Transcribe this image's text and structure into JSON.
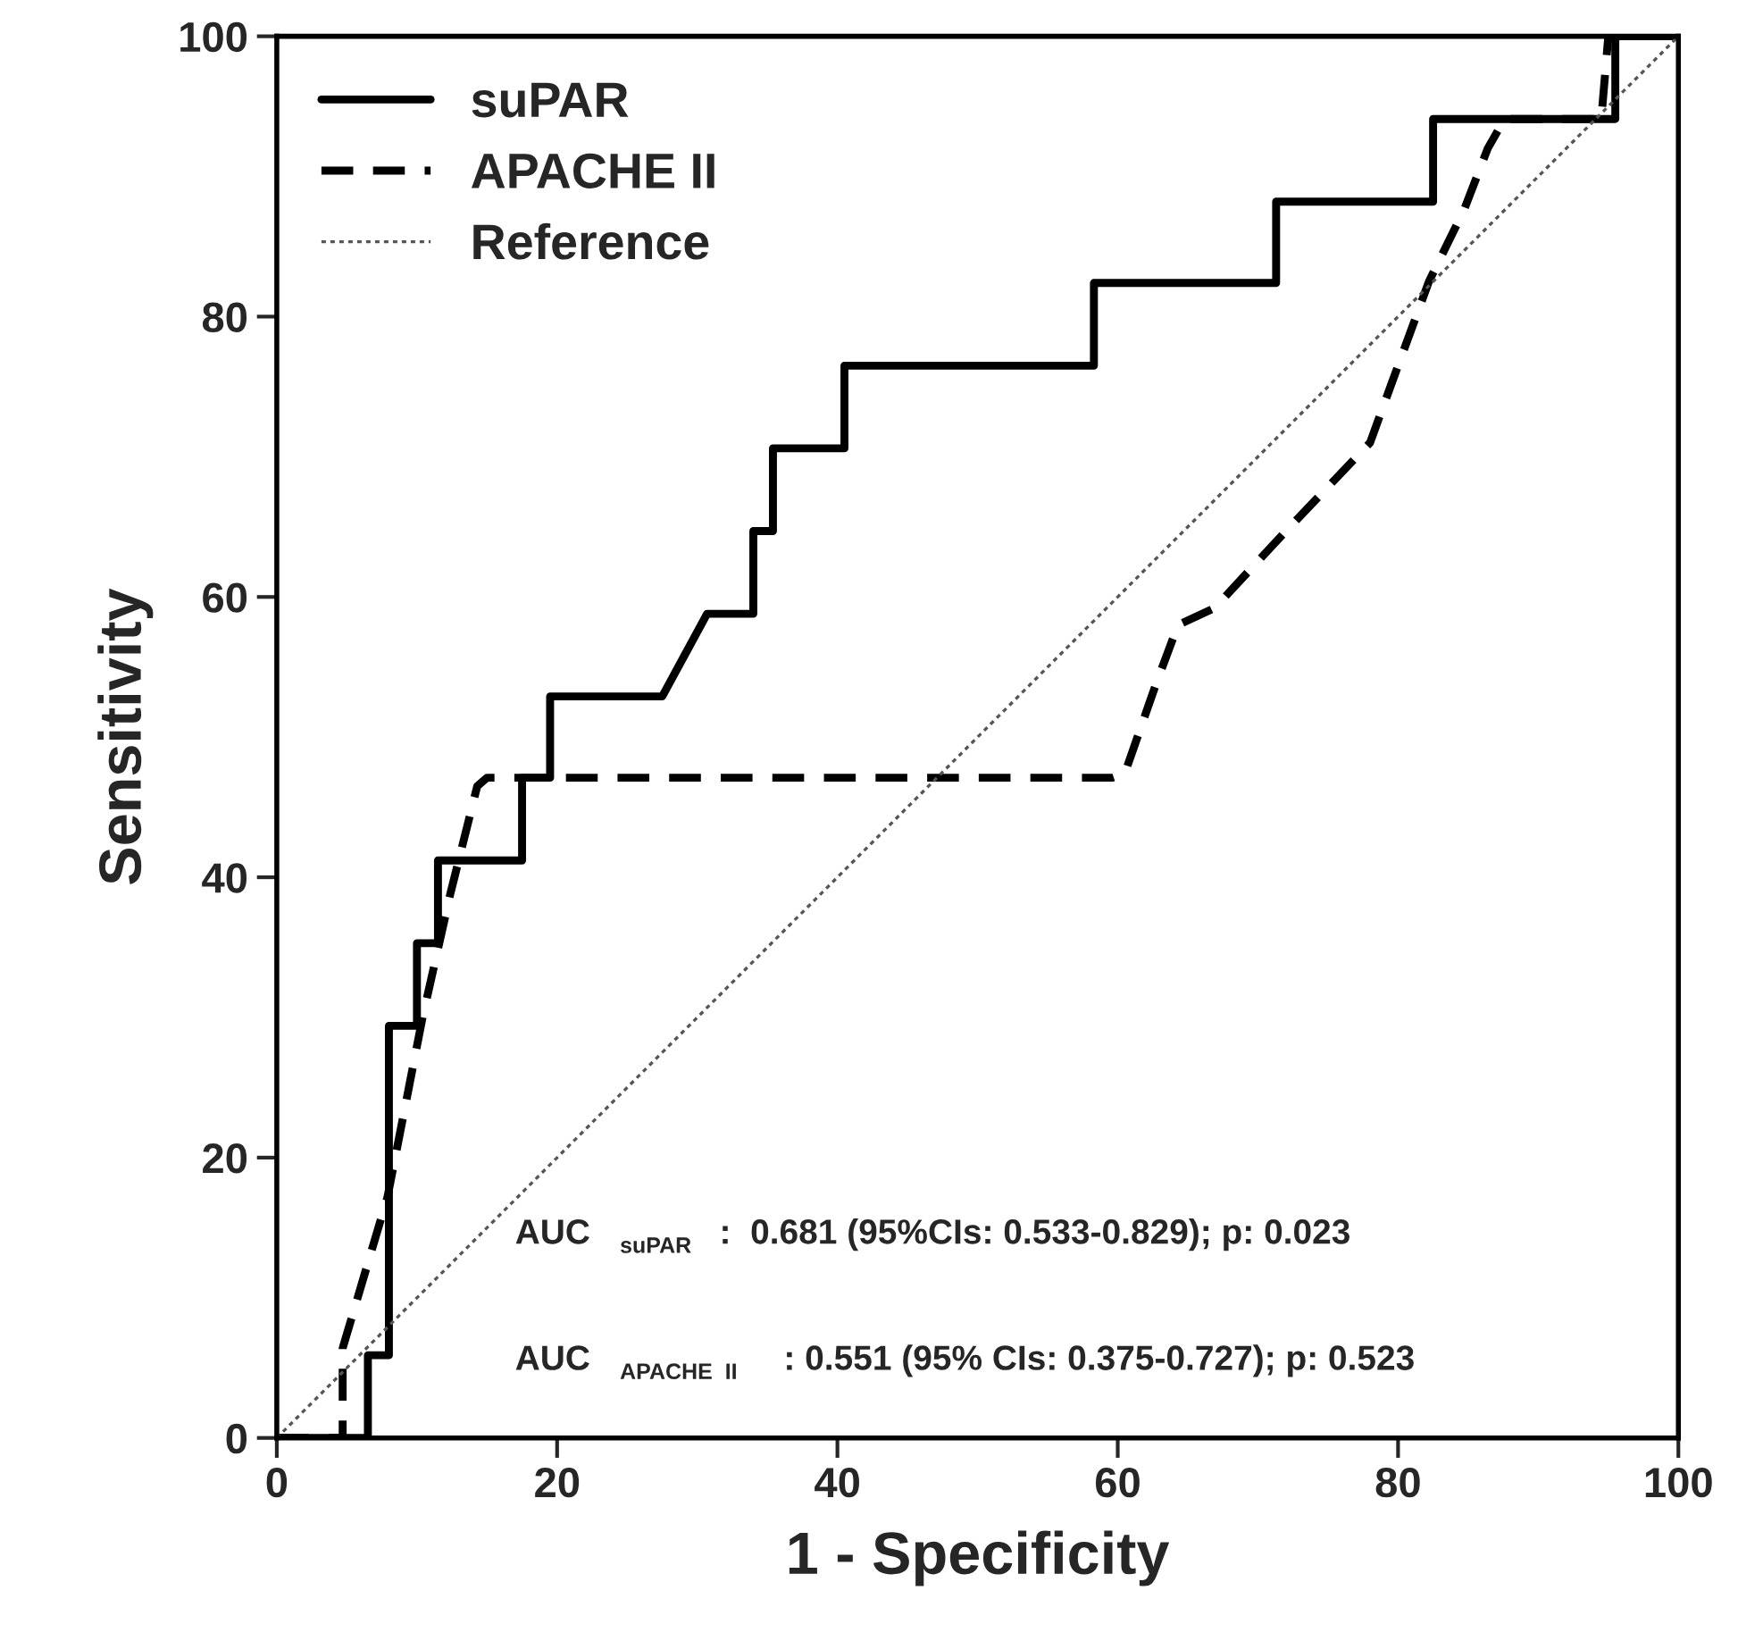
{
  "chart_data": {
    "type": "line",
    "xlabel": "1 - Specificity",
    "ylabel": "Sensitivity",
    "xlim": [
      0,
      100
    ],
    "ylim": [
      0,
      100
    ],
    "xticks": [
      0,
      20,
      40,
      60,
      80,
      100
    ],
    "yticks": [
      0,
      20,
      40,
      60,
      80,
      100
    ],
    "grid": false,
    "legend": "top left",
    "marker": "none",
    "series": [
      {
        "name": "suPAR",
        "color": "#000000",
        "line_style": "solid",
        "x": [
          0,
          6.5,
          6.5,
          8,
          8,
          10,
          10,
          11.5,
          11.5,
          17.5,
          17.5,
          19.5,
          19.5,
          27.5,
          30.7,
          34,
          34,
          35.4,
          35.4,
          40.5,
          40.5,
          58.3,
          58.3,
          71.3,
          71.3,
          82.5,
          82.5,
          95.5,
          95.5,
          100
        ],
        "values": [
          0,
          0,
          5.9,
          5.9,
          29.4,
          29.4,
          35.3,
          35.3,
          41.2,
          41.2,
          47.1,
          47.1,
          52.9,
          52.9,
          58.8,
          58.8,
          64.7,
          64.7,
          70.6,
          70.6,
          76.5,
          76.5,
          82.4,
          82.4,
          88.2,
          88.2,
          94.1,
          94.1,
          100,
          100
        ]
      },
      {
        "name": "APACHE II",
        "color": "#000000",
        "line_style": "dashed",
        "x": [
          0,
          4.7,
          4.7,
          7.9,
          10.4,
          12.4,
          14.3,
          15,
          59.6,
          60.5,
          62.7,
          64.3,
          66.9,
          72,
          78,
          79.6,
          82.2,
          84.7,
          86.4,
          87.6,
          94.5,
          95,
          100
        ],
        "values": [
          0,
          0,
          6.4,
          17.2,
          30,
          38.9,
          46.5,
          47.1,
          47.1,
          47.4,
          53.7,
          58,
          59.2,
          64.7,
          71,
          75.4,
          82.5,
          87.6,
          92,
          94.1,
          94.1,
          100,
          100
        ]
      },
      {
        "name": "Reference",
        "color": "#555555",
        "line_style": "dotted",
        "x": [
          0,
          100
        ],
        "values": [
          0,
          100
        ]
      }
    ],
    "annotations": [
      "AUC$_{suPAR}$:  0.681 (95%CIs: 0.533-0.829); p: 0.023",
      "AUC$_{APACHE  II}$: 0.551 (95% CIs: 0.375-0.727); p: 0.523"
    ]
  }
}
